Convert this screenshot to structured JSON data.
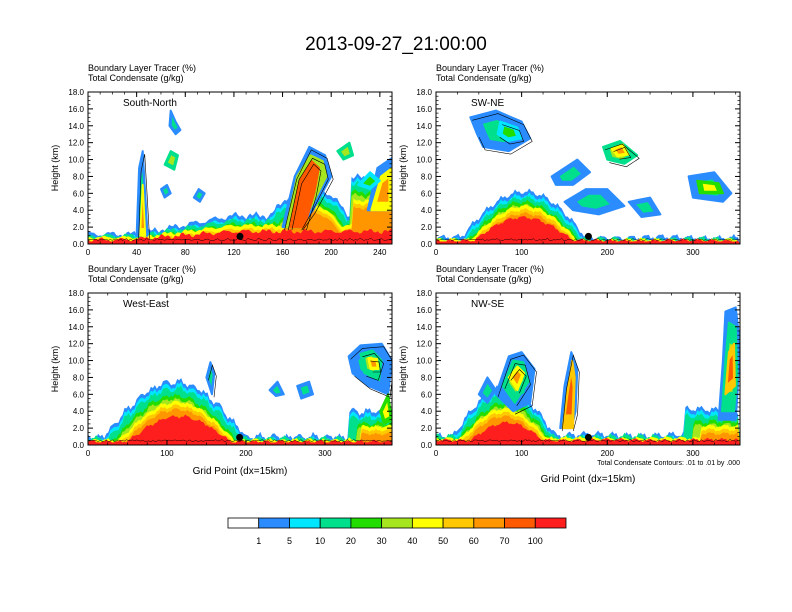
{
  "chart_data": {
    "type": "heatmap",
    "title": "2013-09-27_21:00:00",
    "colorbar": {
      "colors": [
        "#ffffff",
        "#2a8cff",
        "#00e6ff",
        "#00e08c",
        "#22dd00",
        "#a6e61f",
        "#ffff00",
        "#ffc800",
        "#ff9600",
        "#ff5a00",
        "#ff1e1e"
      ],
      "labels": [
        "1",
        "5",
        "10",
        "20",
        "30",
        "40",
        "50",
        "60",
        "70",
        "100"
      ]
    },
    "panels": [
      {
        "id": "south-north",
        "label": "South-North",
        "header_line1": "Boundary Layer Tracer   (%)",
        "header_line2": "Total Condensate   (g/kg)",
        "ylabel": "Height (km)",
        "xlabel": "",
        "footnote": "",
        "xlim": [
          0,
          250
        ],
        "ylim": [
          0,
          18
        ],
        "xticks": [
          0,
          40,
          80,
          120,
          160,
          200,
          240
        ],
        "yticks": [
          "0.0",
          "2.0",
          "4.0",
          "6.0",
          "8.0",
          "10.0",
          "12.0",
          "14.0",
          "16.0",
          "18.0"
        ],
        "marker_x": 125
      },
      {
        "id": "sw-ne",
        "label": "SW-NE",
        "header_line1": "Boundary Layer Tracer   (%)",
        "header_line2": "Total Condensate   (g/kg)",
        "ylabel": "Height (km)",
        "xlabel": "",
        "footnote": "",
        "xlim": [
          0,
          355
        ],
        "ylim": [
          0,
          18
        ],
        "xticks": [
          0,
          100,
          200,
          300
        ],
        "yticks": [
          "0.0",
          "2.0",
          "4.0",
          "6.0",
          "8.0",
          "10.0",
          "12.0",
          "14.0",
          "16.0",
          "18.0"
        ],
        "marker_x": 178
      },
      {
        "id": "west-east",
        "label": "West-East",
        "header_line1": "Boundary Layer Tracer   (%)",
        "header_line2": "Total Condensate   (g/kg)",
        "ylabel": "Height (km)",
        "xlabel": "Grid Point (dx=15km)",
        "footnote": "",
        "xlim": [
          0,
          385
        ],
        "ylim": [
          0,
          18
        ],
        "xticks": [
          0,
          100,
          200,
          300
        ],
        "yticks": [
          "0.0",
          "2.0",
          "4.0",
          "6.0",
          "8.0",
          "10.0",
          "12.0",
          "14.0",
          "16.0",
          "18.0"
        ],
        "marker_x": 192
      },
      {
        "id": "nw-se",
        "label": "NW-SE",
        "header_line1": "Boundary Layer Tracer   (%)",
        "header_line2": "Total Condensate   (g/kg)",
        "ylabel": "Height (km)",
        "xlabel": "Grid Point (dx=15km)",
        "footnote": "Total Condensate Contours: .01 to .01 by .000",
        "xlim": [
          0,
          355
        ],
        "ylim": [
          0,
          18
        ],
        "xticks": [
          0,
          100,
          200,
          300
        ],
        "yticks": [
          "0.0",
          "2.0",
          "4.0",
          "6.0",
          "8.0",
          "10.0",
          "12.0",
          "14.0",
          "16.0",
          "18.0"
        ],
        "marker_x": 178
      }
    ]
  }
}
